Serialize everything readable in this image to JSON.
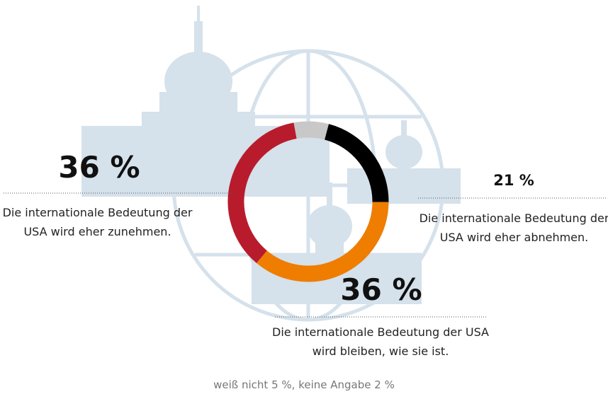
{
  "chart_data": {
    "type": "donut",
    "categories": [
      "Die internationale Bedeutung der USA wird eher zunehmen.",
      "weiß nicht",
      "keine Angabe",
      "Die internationale Bedeutung der USA wird eher abnehmen.",
      "Die internationale Bedeutung der USA wird bleiben, wie sie ist."
    ],
    "values": [
      36,
      5,
      2,
      21,
      36
    ],
    "value_labels": [
      "36 %",
      "5 %",
      "2 %",
      "21 %",
      "36 %"
    ],
    "colors": [
      "#b81c2c",
      "#c8c8c8",
      "#c8c8c8",
      "#000000",
      "#ef7d00"
    ]
  }
}
